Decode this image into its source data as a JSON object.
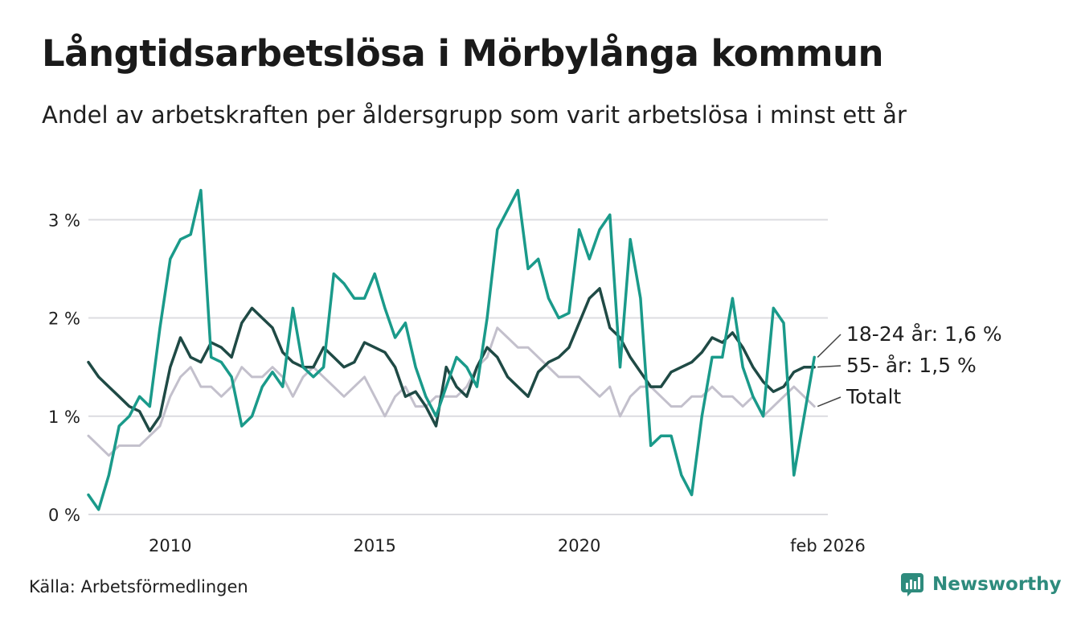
{
  "title": "Långtidsarbetslösa i Mörbylånga kommun",
  "subtitle": "Andel av arbetskraften per åldersgrupp som varit arbetslösa i minst ett år",
  "source": "Källa: Arbetsförmedlingen",
  "brand": {
    "name": "Newsworthy",
    "icon": "newsworthy-logo-icon"
  },
  "colors": {
    "young": "#1a9a8a",
    "old": "#1f4a45",
    "total": "#c3c0cc",
    "grid": "#dcdce0"
  },
  "chart_data": {
    "type": "line",
    "title": "Långtidsarbetslösa i Mörbylånga kommun",
    "xlabel": "",
    "ylabel": "",
    "ylim": [
      0,
      3.6
    ],
    "xlim": [
      2008.0,
      2026.08
    ],
    "yticks": [
      0,
      1,
      2,
      3
    ],
    "ytick_labels": [
      "0 %",
      "1 %",
      "2 %",
      "3 %"
    ],
    "xticks": [
      2010,
      2015,
      2020,
      2026.08
    ],
    "xtick_labels": [
      "2010",
      "2015",
      "2020",
      "feb 2026"
    ],
    "x_start": 2008.0,
    "x_step": 0.25,
    "series": [
      {
        "name": "Totalt",
        "end_label": "Totalt",
        "values": [
          0.8,
          0.7,
          0.6,
          0.7,
          0.7,
          0.7,
          0.8,
          0.9,
          1.2,
          1.4,
          1.5,
          1.3,
          1.3,
          1.2,
          1.3,
          1.5,
          1.4,
          1.4,
          1.5,
          1.4,
          1.2,
          1.4,
          1.5,
          1.4,
          1.3,
          1.2,
          1.3,
          1.4,
          1.2,
          1.0,
          1.2,
          1.3,
          1.1,
          1.1,
          1.2,
          1.2,
          1.2,
          1.3,
          1.5,
          1.6,
          1.9,
          1.8,
          1.7,
          1.7,
          1.6,
          1.5,
          1.4,
          1.4,
          1.4,
          1.3,
          1.2,
          1.3,
          1.0,
          1.2,
          1.3,
          1.3,
          1.2,
          1.1,
          1.1,
          1.2,
          1.2,
          1.3,
          1.2,
          1.2,
          1.1,
          1.2,
          1.0,
          1.1,
          1.2,
          1.3,
          1.2,
          1.1
        ]
      },
      {
        "name": "55- år",
        "end_label": "55- år: 1,5 %",
        "values": [
          1.55,
          1.4,
          1.3,
          1.2,
          1.1,
          1.05,
          0.85,
          1.0,
          1.5,
          1.8,
          1.6,
          1.55,
          1.75,
          1.7,
          1.6,
          1.95,
          2.1,
          2.0,
          1.9,
          1.65,
          1.55,
          1.5,
          1.5,
          1.7,
          1.6,
          1.5,
          1.55,
          1.75,
          1.7,
          1.65,
          1.5,
          1.2,
          1.25,
          1.1,
          0.9,
          1.5,
          1.3,
          1.2,
          1.5,
          1.7,
          1.6,
          1.4,
          1.3,
          1.2,
          1.45,
          1.55,
          1.6,
          1.7,
          1.95,
          2.2,
          2.3,
          1.9,
          1.8,
          1.6,
          1.45,
          1.3,
          1.3,
          1.45,
          1.5,
          1.55,
          1.65,
          1.8,
          1.75,
          1.85,
          1.7,
          1.5,
          1.35,
          1.25,
          1.3,
          1.45,
          1.5,
          1.5
        ]
      },
      {
        "name": "18-24 år",
        "end_label": "18-24 år: 1,6 %",
        "values": [
          0.2,
          0.05,
          0.4,
          0.9,
          1.0,
          1.2,
          1.1,
          1.9,
          2.6,
          2.8,
          2.85,
          3.3,
          1.6,
          1.55,
          1.4,
          0.9,
          1.0,
          1.3,
          1.45,
          1.3,
          2.1,
          1.5,
          1.4,
          1.5,
          2.45,
          2.35,
          2.2,
          2.2,
          2.45,
          2.1,
          1.8,
          1.95,
          1.5,
          1.2,
          1.0,
          1.3,
          1.6,
          1.5,
          1.3,
          2.0,
          2.9,
          3.1,
          3.3,
          2.5,
          2.6,
          2.2,
          2.0,
          2.05,
          2.9,
          2.6,
          2.9,
          3.05,
          1.5,
          2.8,
          2.2,
          0.7,
          0.8,
          0.8,
          0.4,
          0.2,
          1.0,
          1.6,
          1.6,
          2.2,
          1.5,
          1.2,
          1.0,
          2.1,
          1.95,
          0.4,
          1.0,
          1.6
        ]
      }
    ]
  }
}
